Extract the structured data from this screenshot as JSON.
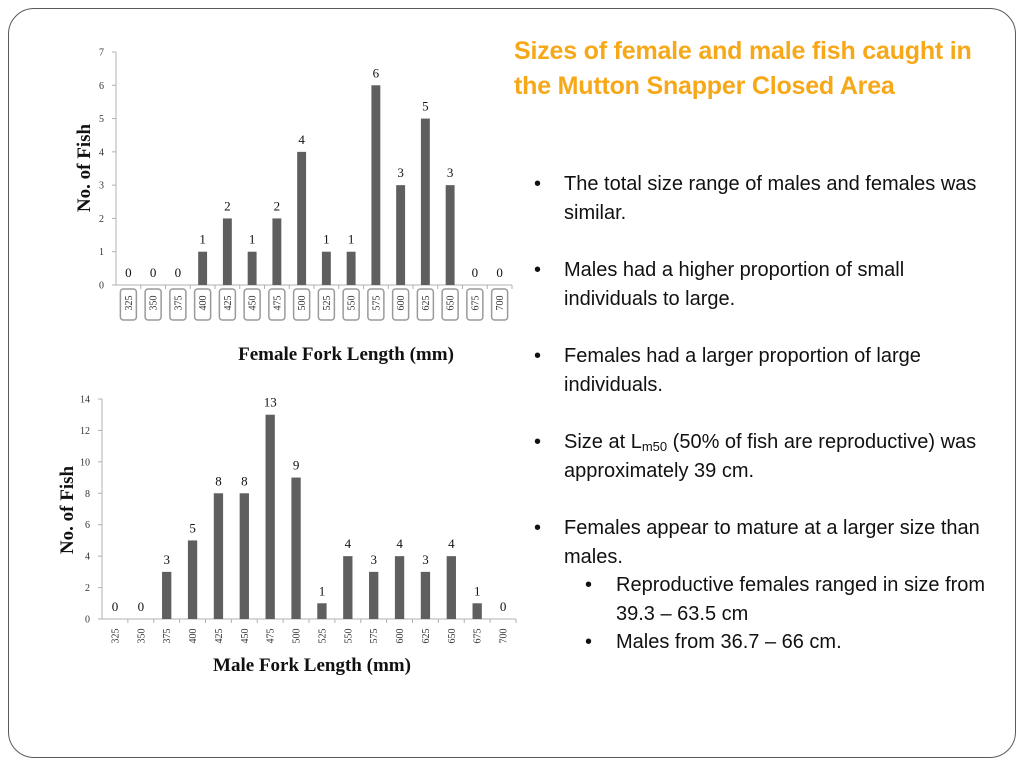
{
  "slide": {
    "title": "Sizes of female and male fish caught in the Mutton Snapper Closed Area",
    "title_color": "#f7a818",
    "bullets": [
      "The total size range of males and females was similar.",
      "Males had a higher proportion of small individuals to large.",
      "Females had a larger proportion of large individuals.",
      {
        "before": "Size at L",
        "subscript": "m50",
        "after": " (50% of fish are reproductive) was approximately 39 cm."
      },
      "Females appear to mature at a larger size than males."
    ],
    "sub_bullets": [
      "Reproductive females ranged in size from 39.3 – 63.5 cm",
      "Males from 36.7 – 66 cm."
    ]
  },
  "chart_data": [
    {
      "type": "bar",
      "title": "",
      "xlabel": "Female Fork Length (mm)",
      "ylabel": "No. of Fish",
      "categories": [
        "325",
        "350",
        "375",
        "400",
        "425",
        "450",
        "475",
        "500",
        "525",
        "550",
        "575",
        "600",
        "625",
        "650",
        "675",
        "700"
      ],
      "values": [
        0,
        0,
        0,
        1,
        2,
        1,
        2,
        4,
        1,
        1,
        6,
        3,
        5,
        3,
        0,
        0
      ],
      "ylim": [
        0,
        7
      ],
      "yticks": [
        0,
        1,
        2,
        3,
        4,
        5,
        6,
        7
      ],
      "bar_color": "#5f5f5f",
      "grid": false,
      "data_labels": true
    },
    {
      "type": "bar",
      "title": "",
      "xlabel": "Male Fork Length (mm)",
      "ylabel": "No. of Fish",
      "categories": [
        "325",
        "350",
        "375",
        "400",
        "425",
        "450",
        "475",
        "500",
        "525",
        "550",
        "575",
        "600",
        "625",
        "650",
        "675",
        "700"
      ],
      "values": [
        0,
        0,
        3,
        5,
        8,
        8,
        13,
        9,
        1,
        4,
        3,
        4,
        3,
        4,
        1,
        0
      ],
      "ylim": [
        0,
        14
      ],
      "yticks": [
        0,
        2,
        4,
        6,
        8,
        10,
        12,
        14
      ],
      "bar_color": "#5f5f5f",
      "grid": false,
      "data_labels": true
    }
  ]
}
